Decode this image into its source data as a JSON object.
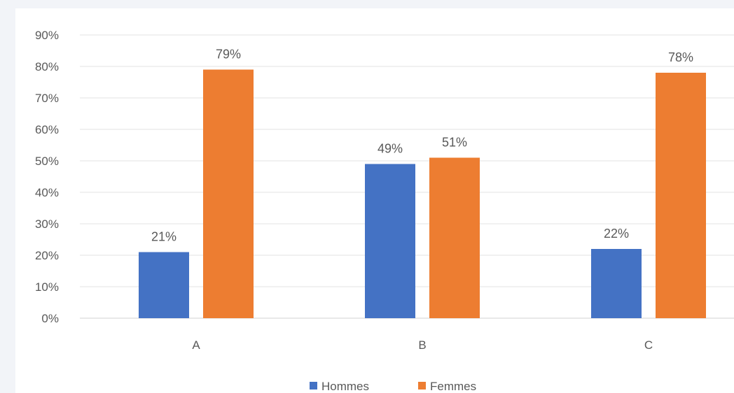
{
  "chart_data": {
    "type": "bar",
    "categories": [
      "A",
      "B",
      "C"
    ],
    "series": [
      {
        "name": "Hommes",
        "values": [
          21,
          49,
          22
        ],
        "labels": [
          "21%",
          "49%",
          "22%"
        ],
        "color": "#4472c4"
      },
      {
        "name": "Femmes",
        "values": [
          79,
          51,
          78
        ],
        "labels": [
          "79%",
          "51%",
          "78%"
        ],
        "color": "#ed7d31"
      }
    ],
    "ylim": [
      0,
      90
    ],
    "yticks": [
      0,
      10,
      20,
      30,
      40,
      50,
      60,
      70,
      80,
      90
    ],
    "ytick_labels": [
      "0%",
      "10%",
      "20%",
      "30%",
      "40%",
      "50%",
      "60%",
      "70%",
      "80%",
      "90%"
    ],
    "grid": true,
    "legend_position": "bottom"
  }
}
